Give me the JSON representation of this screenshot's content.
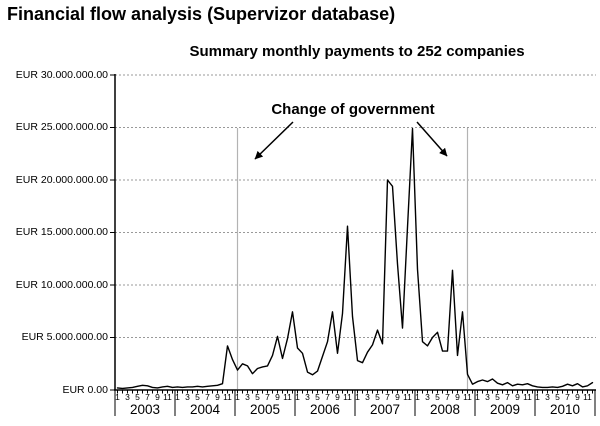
{
  "page": {
    "title": "Financial flow analysis (Supervizor database)"
  },
  "chart": {
    "title": "Summary monthly payments to 252 companies",
    "annotation": "Change of government",
    "y_axis_labels": [
      "EUR 30.000.000.00",
      "EUR 25.000.000.00",
      "EUR 20.000.000.00",
      "EUR 15.000.000.00",
      "EUR 10.000.000.00",
      "EUR 5.000.000.00",
      "EUR 0.00"
    ],
    "month_tick_labels": [
      "1",
      "3",
      "5",
      "7",
      "9",
      "11"
    ],
    "years": [
      "2003",
      "2004",
      "2005",
      "2006",
      "2007",
      "2008",
      "2009",
      "2010"
    ],
    "colors": {
      "line": "#000000",
      "grid": "#999999",
      "event_line": "#b3b3b3",
      "text": "#000000",
      "background": "#ffffff"
    }
  },
  "chart_data": {
    "type": "line",
    "title": "Summary monthly payments to 252 companies",
    "xlabel": "months (1-12) per year, 2003-2010",
    "ylabel": "EUR",
    "ylim": [
      0,
      30000000
    ],
    "grid": "horizontal dotted lines every 5.000.000",
    "years": [
      "2003",
      "2004",
      "2005",
      "2006",
      "2007",
      "2008",
      "2009",
      "2010"
    ],
    "series": [
      {
        "name": "Summary monthly payments",
        "unit": "million EUR",
        "values_million_eur": [
          0.2,
          0.15,
          0.2,
          0.25,
          0.35,
          0.45,
          0.4,
          0.25,
          0.2,
          0.3,
          0.35,
          0.25,
          0.3,
          0.25,
          0.3,
          0.3,
          0.35,
          0.3,
          0.35,
          0.4,
          0.45,
          0.6,
          4.2,
          2.9,
          1.9,
          2.5,
          2.3,
          1.55,
          2.05,
          2.2,
          2.3,
          3.3,
          5.1,
          3.0,
          4.9,
          7.45,
          4.0,
          3.5,
          1.7,
          1.45,
          1.8,
          3.2,
          4.6,
          7.45,
          3.5,
          7.3,
          15.6,
          7.0,
          2.8,
          2.6,
          3.6,
          4.3,
          5.7,
          4.4,
          20.0,
          19.4,
          12.0,
          5.9,
          15.5,
          24.9,
          11.5,
          4.6,
          4.2,
          5.0,
          5.5,
          3.7,
          3.7,
          11.4,
          3.3,
          7.45,
          1.5,
          0.55,
          0.8,
          0.95,
          0.8,
          1.05,
          0.65,
          0.5,
          0.7,
          0.4,
          0.55,
          0.5,
          0.6,
          0.4,
          0.3,
          0.25,
          0.25,
          0.3,
          0.25,
          0.35,
          0.55,
          0.4,
          0.6,
          0.3,
          0.4,
          0.7
        ]
      }
    ],
    "annotations": [
      {
        "text": "Change of government",
        "marker": "vertical gray line",
        "position": "Jan 2005",
        "month_index": 24
      },
      {
        "text": "Change of government",
        "marker": "vertical gray line",
        "position": "Nov 2008",
        "month_index": 70
      }
    ]
  }
}
